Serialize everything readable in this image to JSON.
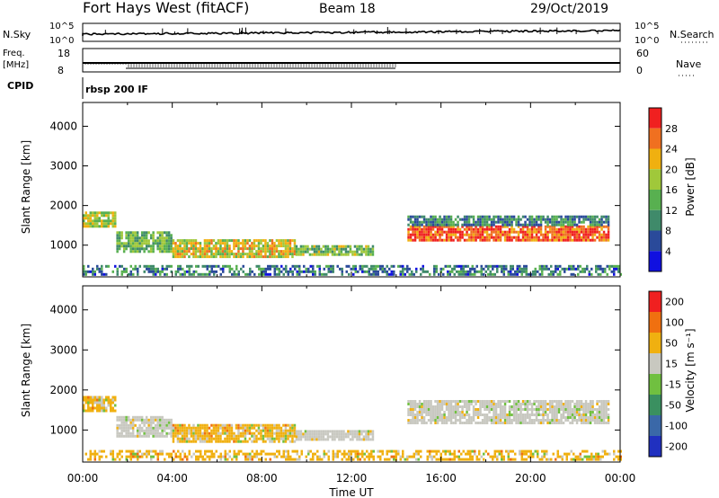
{
  "header": {
    "station": "Fort Hays West (fitACF)",
    "beam": "Beam 18",
    "date": "29/Oct/2019"
  },
  "strip_labels": {
    "nsky": "N.Sky",
    "nsearch": "N.Search",
    "freq_line1": "Freq.",
    "freq_line2": "[MHz]",
    "nave": "Nave",
    "cpid": "CPID",
    "cpid_value": "rbsp 200 IF",
    "noise_ticks_left": [
      "10^5",
      "10^0"
    ],
    "noise_ticks_right": [
      "10^5",
      "10^0"
    ],
    "freq_ticks": [
      "18",
      "8"
    ],
    "nave_ticks": [
      "60",
      "0"
    ]
  },
  "chart_data": [
    {
      "type": "heatmap",
      "panel": "power",
      "ylabel": "Slant Range [km]",
      "y_ticks": [
        1000,
        2000,
        3000,
        4000
      ],
      "ylim": [
        200,
        4600
      ],
      "xlim": [
        0,
        24
      ],
      "colorbar": {
        "label": "Power [dB]",
        "min": 0,
        "max": 32,
        "ticks": [
          "4",
          "8",
          "12",
          "16",
          "20",
          "24",
          "28"
        ],
        "colors": [
          "#1010e0",
          "#2a4a9a",
          "#3f8a6a",
          "#58b050",
          "#a0c83a",
          "#f0b010",
          "#f07020",
          "#f02020"
        ]
      },
      "regions": [
        {
          "t0": 0.0,
          "t1": 1.5,
          "r0": 1450,
          "r1": 1850,
          "level": 18
        },
        {
          "t0": 1.5,
          "t1": 4.0,
          "r0": 850,
          "r1": 1350,
          "level": 14
        },
        {
          "t0": 4.0,
          "t1": 9.5,
          "r0": 700,
          "r1": 1150,
          "level": 20
        },
        {
          "t0": 9.5,
          "t1": 13.0,
          "r0": 750,
          "r1": 1000,
          "level": 15
        },
        {
          "t0": 14.5,
          "t1": 23.5,
          "r0": 1150,
          "r1": 1500,
          "level": 27
        },
        {
          "t0": 14.5,
          "t1": 23.5,
          "r0": 1500,
          "r1": 1750,
          "level": 10
        },
        {
          "t0": 0.0,
          "t1": 24.0,
          "r0": 250,
          "r1": 500,
          "level": 9
        }
      ]
    },
    {
      "type": "heatmap",
      "panel": "velocity",
      "ylabel": "Slant Range [km]",
      "xlabel": "Time UT",
      "y_ticks": [
        1000,
        2000,
        3000,
        4000
      ],
      "ylim": [
        200,
        4600
      ],
      "xlim": [
        0,
        24
      ],
      "x_ticks": [
        "00:00",
        "04:00",
        "08:00",
        "12:00",
        "16:00",
        "20:00",
        "00:00"
      ],
      "colorbar": {
        "label": "Velocity [m s⁻¹]",
        "ticks": [
          "200",
          "100",
          "50",
          "15",
          "-15",
          "-50",
          "-100",
          "-200"
        ],
        "colors": [
          "#2030c0",
          "#3a68a8",
          "#3a9060",
          "#70c040",
          "#c8c8c0",
          "#f0b010",
          "#f07010",
          "#f02020"
        ]
      },
      "regions": [
        {
          "t0": 0.0,
          "t1": 1.5,
          "r0": 1450,
          "r1": 1850,
          "class": "orange"
        },
        {
          "t0": 1.5,
          "t1": 4.0,
          "r0": 850,
          "r1": 1350,
          "class": "gray"
        },
        {
          "t0": 4.0,
          "t1": 9.5,
          "r0": 700,
          "r1": 1150,
          "class": "orange"
        },
        {
          "t0": 9.5,
          "t1": 13.0,
          "r0": 750,
          "r1": 1000,
          "class": "gray"
        },
        {
          "t0": 14.5,
          "t1": 23.5,
          "r0": 1150,
          "r1": 1750,
          "class": "gray"
        },
        {
          "t0": 0.0,
          "t1": 24.0,
          "r0": 250,
          "r1": 500,
          "class": "orange"
        }
      ]
    }
  ]
}
